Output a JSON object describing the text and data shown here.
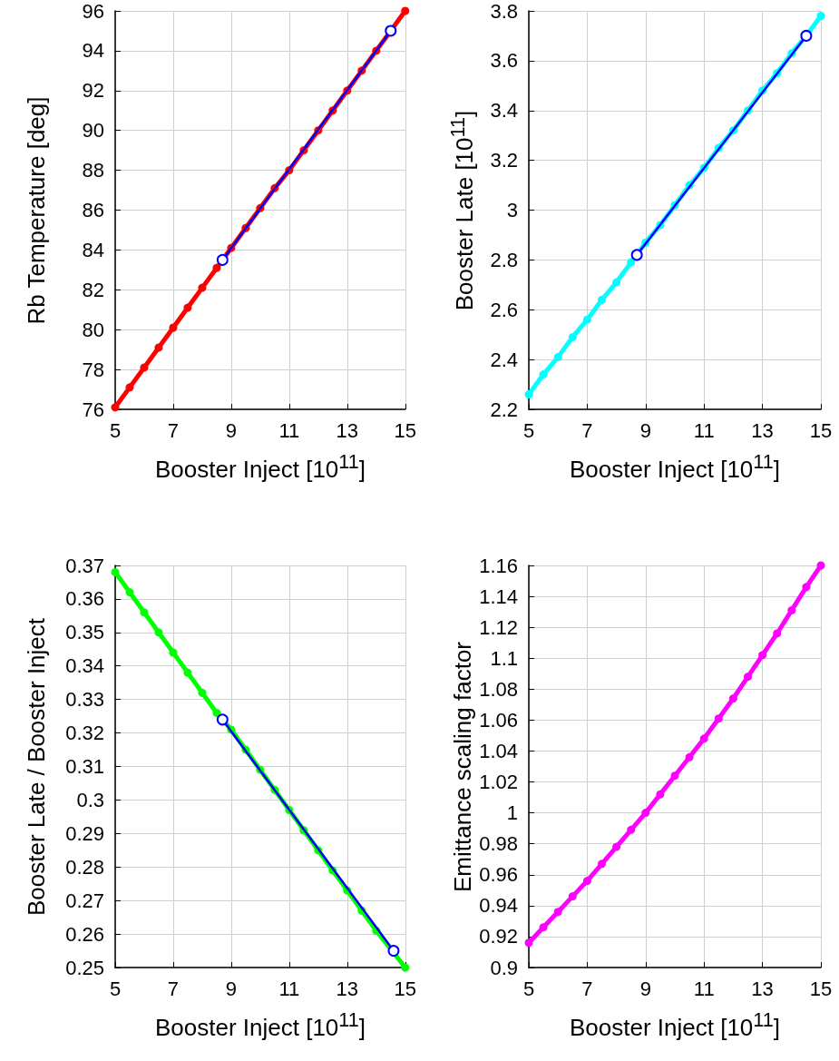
{
  "chart_data": [
    {
      "type": "line",
      "xlabel": "Booster Inject [10$^{11}$]",
      "ylabel": "Rb Temperature  [deg]",
      "x": [
        5,
        5.5,
        6,
        6.5,
        7,
        7.5,
        8,
        8.5,
        9,
        9.5,
        10,
        10.5,
        11,
        11.5,
        12,
        12.5,
        13,
        13.5,
        14,
        14.5,
        15
      ],
      "xlim": [
        5,
        15
      ],
      "xticks": [
        5,
        7,
        9,
        11,
        13,
        15
      ],
      "ylim": [
        76,
        96
      ],
      "yticks": [
        76,
        78,
        80,
        82,
        84,
        86,
        88,
        90,
        92,
        94,
        96
      ],
      "grid": true,
      "marker": "circle",
      "line_style": "solid",
      "series": [
        {
          "color": "#ff0000",
          "values": [
            76.1,
            77.1,
            78.1,
            79.1,
            80.1,
            81.1,
            82.1,
            83.1,
            84.1,
            85.1,
            86.1,
            87.1,
            88.0,
            89.0,
            90.0,
            91.0,
            92.0,
            93.0,
            94.0,
            95.0,
            96.0
          ]
        },
        {
          "color": "#0000ff",
          "x": [
            8.7,
            14.5
          ],
          "values": [
            83.5,
            95.0
          ]
        }
      ]
    },
    {
      "type": "line",
      "xlabel": "Booster Inject [10$^{11}$]",
      "ylabel": "Booster Late [10$^{11}$]",
      "x": [
        5,
        5.5,
        6,
        6.5,
        7,
        7.5,
        8,
        8.5,
        9,
        9.5,
        10,
        10.5,
        11,
        11.5,
        12,
        12.5,
        13,
        13.5,
        14,
        14.5,
        15
      ],
      "xlim": [
        5,
        15
      ],
      "xticks": [
        5,
        7,
        9,
        11,
        13,
        15
      ],
      "ylim": [
        2.2,
        3.8
      ],
      "yticks": [
        2.2,
        2.4,
        2.6,
        2.8,
        3,
        3.2,
        3.4,
        3.6,
        3.8
      ],
      "grid": true,
      "marker": "circle",
      "line_style": "solid",
      "series": [
        {
          "color": "#00ffff",
          "values": [
            2.26,
            2.34,
            2.41,
            2.49,
            2.56,
            2.64,
            2.71,
            2.79,
            2.87,
            2.94,
            3.02,
            3.1,
            3.17,
            3.25,
            3.32,
            3.4,
            3.48,
            3.55,
            3.63,
            3.7,
            3.78
          ]
        },
        {
          "color": "#0000ff",
          "x": [
            8.7,
            14.5
          ],
          "values": [
            2.82,
            3.7
          ]
        }
      ]
    },
    {
      "type": "line",
      "xlabel": "Booster Inject [10$^{11}$]",
      "ylabel": "Booster Late / Booster Inject",
      "x": [
        5,
        5.5,
        6,
        6.5,
        7,
        7.5,
        8,
        8.5,
        9,
        9.5,
        10,
        10.5,
        11,
        11.5,
        12,
        12.5,
        13,
        13.5,
        14,
        14.5,
        15
      ],
      "xlim": [
        5,
        15
      ],
      "xticks": [
        5,
        7,
        9,
        11,
        13,
        15
      ],
      "ylim": [
        0.25,
        0.37
      ],
      "yticks": [
        0.25,
        0.26,
        0.27,
        0.28,
        0.29,
        0.3,
        0.31,
        0.32,
        0.33,
        0.34,
        0.35,
        0.36,
        0.37
      ],
      "grid": true,
      "marker": "circle",
      "line_style": "solid",
      "series": [
        {
          "color": "#00ff00",
          "values": [
            0.368,
            0.362,
            0.356,
            0.35,
            0.344,
            0.338,
            0.332,
            0.326,
            0.321,
            0.315,
            0.309,
            0.303,
            0.297,
            0.291,
            0.285,
            0.279,
            0.273,
            0.267,
            0.261,
            null,
            0.25
          ]
        },
        {
          "color": "#0000ff",
          "x": [
            8.7,
            14.6
          ],
          "values": [
            0.324,
            0.255
          ]
        }
      ]
    },
    {
      "type": "line",
      "xlabel": "Booster Inject [10$^{11}$]",
      "ylabel": "Emittance scaling factor",
      "x": [
        5,
        5.5,
        6,
        6.5,
        7,
        7.5,
        8,
        8.5,
        9,
        9.5,
        10,
        10.5,
        11,
        11.5,
        12,
        12.5,
        13,
        13.5,
        14,
        14.5,
        15
      ],
      "xlim": [
        5,
        15
      ],
      "xticks": [
        5,
        7,
        9,
        11,
        13,
        15
      ],
      "ylim": [
        0.9,
        1.16
      ],
      "yticks": [
        0.9,
        0.92,
        0.94,
        0.96,
        0.98,
        1,
        1.02,
        1.04,
        1.06,
        1.08,
        1.1,
        1.12,
        1.14,
        1.16
      ],
      "grid": true,
      "marker": "circle",
      "line_style": "solid",
      "series": [
        {
          "color": "#ff00ff",
          "values": [
            0.916,
            0.926,
            0.936,
            0.946,
            0.956,
            0.967,
            0.978,
            0.989,
            1.0,
            1.012,
            1.024,
            1.036,
            1.048,
            1.061,
            1.074,
            1.088,
            1.102,
            1.116,
            1.131,
            1.146,
            1.16
          ]
        }
      ]
    }
  ]
}
